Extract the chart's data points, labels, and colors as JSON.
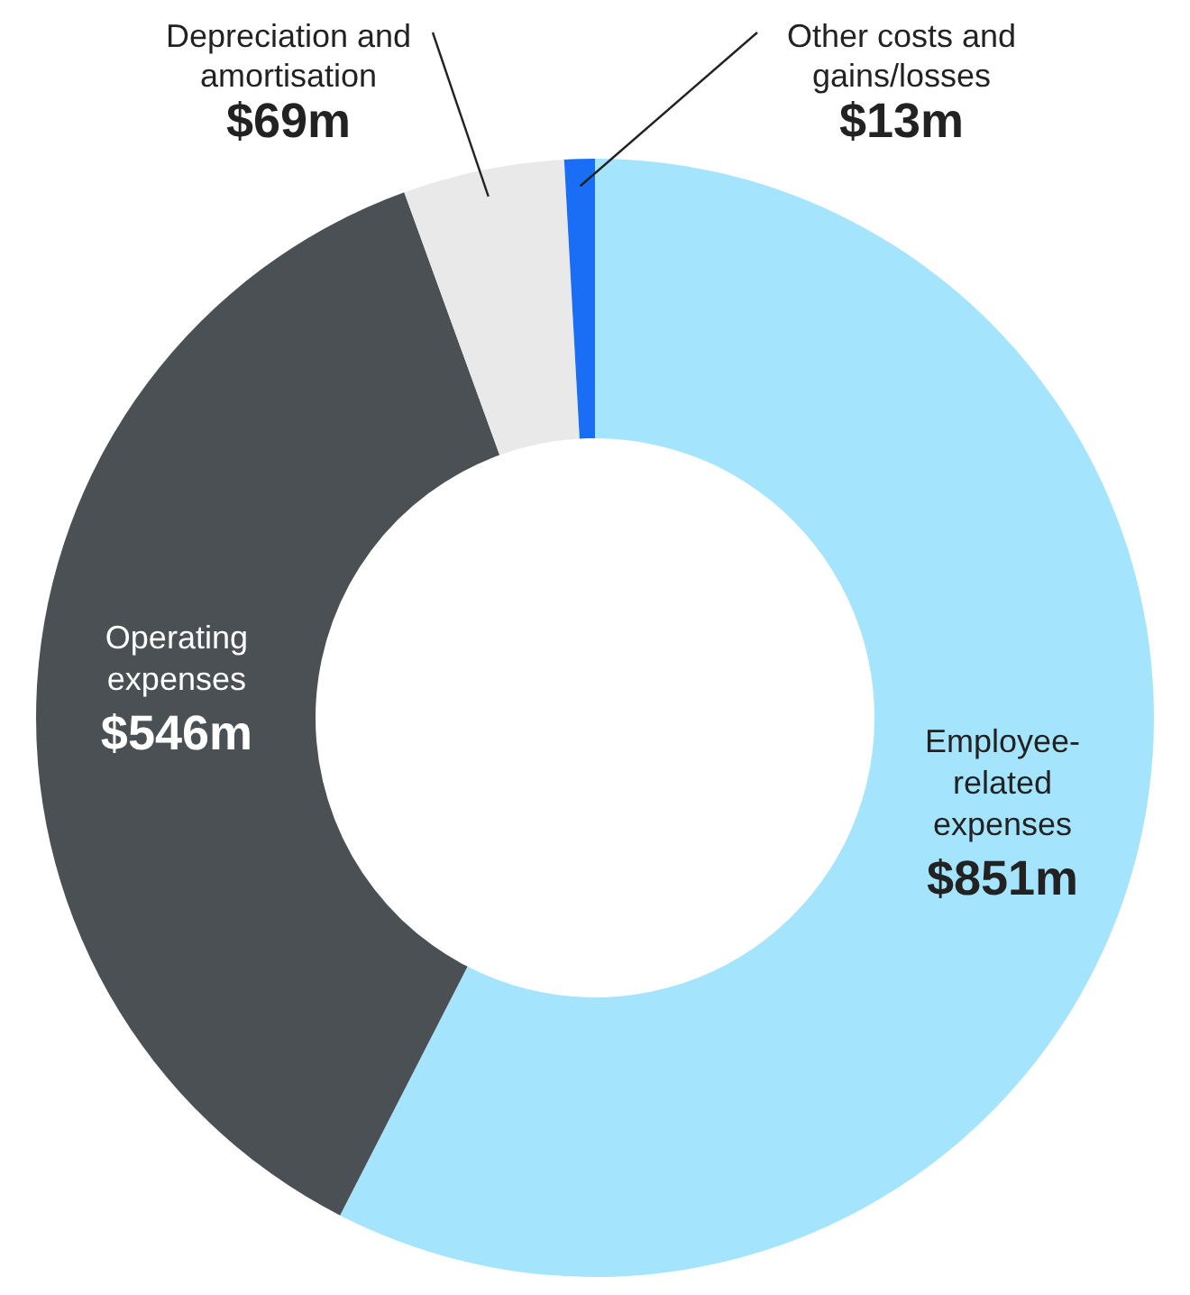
{
  "chart_data": {
    "type": "donut",
    "categories": [
      "Employee-related expenses",
      "Operating expenses",
      "Depreciation and amortisation",
      "Other costs and gains/losses"
    ],
    "values": [
      851,
      546,
      69,
      13
    ],
    "value_labels": [
      "$851m",
      "$546m",
      "$69m",
      "$13m"
    ],
    "colors": [
      "#a5e4fd",
      "#4a5053",
      "#e9e9e9",
      "#1a6ef5"
    ],
    "legend": false
  }
}
